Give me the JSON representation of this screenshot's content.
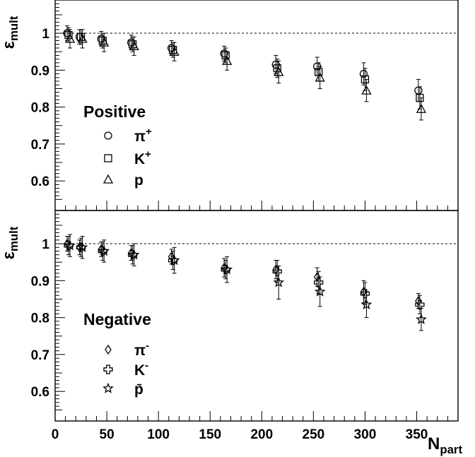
{
  "chart_data": [
    {
      "type": "scatter",
      "panel": "top",
      "ylabel": "ε",
      "ylabel_sub": "mult",
      "xlim": [
        0,
        390
      ],
      "ylim": [
        0.52,
        1.09
      ],
      "yticks": [
        "0.6",
        "0.7",
        "0.8",
        "0.9",
        "1"
      ],
      "reference_line": 1.0,
      "legend_title": "Positive",
      "series": [
        {
          "name": "π",
          "sup": "+",
          "marker": "circle",
          "x": [
            13,
            25,
            46,
            75,
            114,
            165,
            215,
            255,
            300,
            353
          ],
          "y": [
            1.0,
            0.99,
            0.985,
            0.975,
            0.96,
            0.945,
            0.915,
            0.91,
            0.89,
            0.845
          ],
          "err": [
            0.02,
            0.02,
            0.02,
            0.02,
            0.02,
            0.02,
            0.025,
            0.025,
            0.03,
            0.03
          ]
        },
        {
          "name": "K",
          "sup": "+",
          "marker": "square",
          "x": [
            13,
            25,
            46,
            75,
            114,
            165,
            215,
            255,
            300,
            353
          ],
          "y": [
            0.995,
            0.99,
            0.98,
            0.97,
            0.955,
            0.94,
            0.905,
            0.895,
            0.875,
            0.825
          ],
          "err": [
            0.02,
            0.02,
            0.02,
            0.02,
            0.02,
            0.02,
            0.025,
            0.025,
            0.03,
            0.03
          ]
        },
        {
          "name": "p",
          "sup": "",
          "marker": "triangle",
          "x": [
            13,
            25,
            46,
            75,
            114,
            165,
            215,
            255,
            300,
            353
          ],
          "y": [
            0.985,
            0.985,
            0.975,
            0.965,
            0.95,
            0.925,
            0.895,
            0.88,
            0.845,
            0.795
          ],
          "err": [
            0.025,
            0.025,
            0.025,
            0.025,
            0.025,
            0.025,
            0.03,
            0.03,
            0.03,
            0.03
          ]
        }
      ]
    },
    {
      "type": "scatter",
      "panel": "bottom",
      "xlabel": "N",
      "xlabel_sub": "part",
      "ylabel": "ε",
      "ylabel_sub": "mult",
      "xlim": [
        0,
        390
      ],
      "ylim": [
        0.52,
        1.09
      ],
      "xticks": [
        "0",
        "50",
        "100",
        "150",
        "200",
        "250",
        "300",
        "350"
      ],
      "yticks": [
        "0.6",
        "0.7",
        "0.8",
        "0.9",
        "1"
      ],
      "reference_line": 1.0,
      "legend_title": "Negative",
      "series": [
        {
          "name": "π",
          "sup": "-",
          "marker": "diamond",
          "x": [
            13,
            25,
            46,
            75,
            114,
            165,
            215,
            255,
            300,
            353
          ],
          "y": [
            1.0,
            0.99,
            0.985,
            0.975,
            0.965,
            0.935,
            0.93,
            0.91,
            0.87,
            0.845
          ],
          "err": [
            0.02,
            0.02,
            0.02,
            0.02,
            0.02,
            0.025,
            0.025,
            0.025,
            0.03,
            0.02
          ]
        },
        {
          "name": "K",
          "sup": "-",
          "marker": "cross",
          "x": [
            13,
            25,
            46,
            75,
            114,
            165,
            215,
            255,
            300,
            353
          ],
          "y": [
            0.995,
            0.99,
            0.98,
            0.97,
            0.955,
            0.93,
            0.925,
            0.895,
            0.865,
            0.835
          ],
          "err": [
            0.025,
            0.025,
            0.025,
            0.025,
            0.025,
            0.025,
            0.03,
            0.03,
            0.03,
            0.025
          ]
        },
        {
          "name": "p̄",
          "sup": "",
          "marker": "star",
          "x": [
            13,
            25,
            46,
            75,
            114,
            165,
            215,
            255,
            300,
            353
          ],
          "y": [
            0.995,
            0.99,
            0.98,
            0.97,
            0.955,
            0.93,
            0.895,
            0.87,
            0.835,
            0.795
          ],
          "err": [
            0.03,
            0.03,
            0.03,
            0.03,
            0.035,
            0.035,
            0.045,
            0.04,
            0.035,
            0.03
          ]
        }
      ]
    }
  ]
}
